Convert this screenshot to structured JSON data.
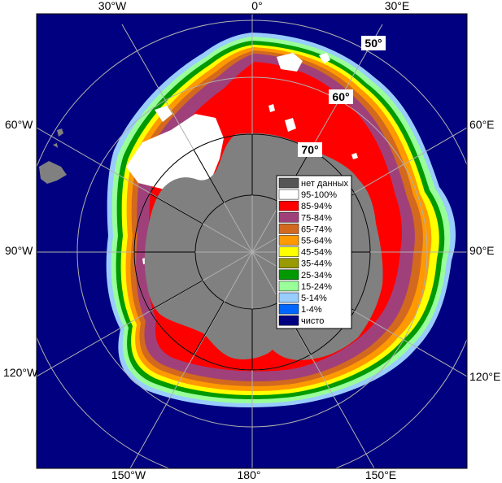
{
  "longitude_labels": {
    "top": [
      "30°W",
      "0°",
      "30°E"
    ],
    "left": [
      "60°W",
      "90°W",
      "120°W"
    ],
    "right": [
      "60°E",
      "90°E",
      "120°E"
    ],
    "bottom": [
      "150°W",
      "180°",
      "150°E"
    ]
  },
  "latitude_labels": [
    "50°",
    "60°",
    "70°"
  ],
  "legend": {
    "items": [
      {
        "label": "нет данных",
        "color": "#555555"
      },
      {
        "label": "95-100%",
        "color": "#ffffff"
      },
      {
        "label": "85-94%",
        "color": "#ff0000"
      },
      {
        "label": "75-84%",
        "color": "#a0407a"
      },
      {
        "label": "65-74%",
        "color": "#d2691e"
      },
      {
        "label": "55-64%",
        "color": "#ff9900"
      },
      {
        "label": "45-54%",
        "color": "#ffff00"
      },
      {
        "label": "35-44%",
        "color": "#999900"
      },
      {
        "label": "25-34%",
        "color": "#009900"
      },
      {
        "label": "15-24%",
        "color": "#99ff99"
      },
      {
        "label": "5-14%",
        "color": "#99ccff"
      },
      {
        "label": "1-4%",
        "color": "#0066ff"
      },
      {
        "label": "чисто",
        "color": "#000080"
      }
    ]
  },
  "colors": {
    "ocean": "#000080",
    "land": "#808080",
    "grid": "#b0b0b0"
  }
}
